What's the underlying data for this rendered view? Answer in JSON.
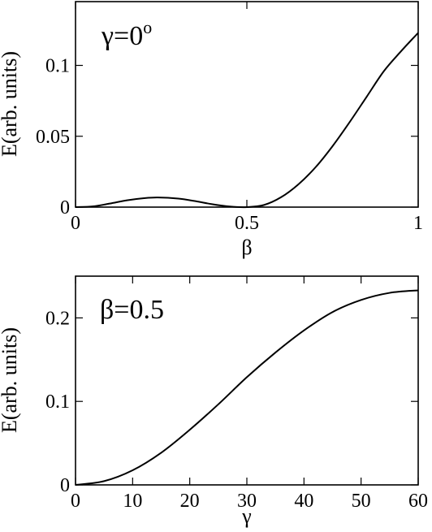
{
  "chart_data": [
    {
      "type": "line",
      "annotation": "γ=0",
      "annotation_sup": "o",
      "xlabel": "β",
      "ylabel": "E(arb. units)",
      "xlim": [
        0,
        1
      ],
      "ylim": [
        0,
        0.145
      ],
      "xticks": [
        0,
        0.5,
        1
      ],
      "xtick_labels": [
        "0",
        "0.5",
        "1"
      ],
      "yticks": [
        0,
        0.05,
        0.1
      ],
      "ytick_labels": [
        "0",
        "0.05",
        "0.1"
      ],
      "grid": false,
      "series": [
        {
          "x": [
            0,
            0.05,
            0.1,
            0.15,
            0.2,
            0.24,
            0.3,
            0.35,
            0.4,
            0.45,
            0.5,
            0.55,
            0.6,
            0.65,
            0.7,
            0.75,
            0.8,
            0.85,
            0.9,
            0.95,
            1.0
          ],
          "y": [
            0,
            0.0005,
            0.0025,
            0.0048,
            0.0063,
            0.0068,
            0.006,
            0.0042,
            0.002,
            0.0004,
            0,
            0.0015,
            0.007,
            0.016,
            0.028,
            0.043,
            0.06,
            0.078,
            0.096,
            0.11,
            0.123
          ]
        }
      ]
    },
    {
      "type": "line",
      "annotation": "β=0.5",
      "xlabel": "γ",
      "ylabel": "E(arb. units)",
      "xlim": [
        0,
        60
      ],
      "ylim": [
        0,
        0.25
      ],
      "xticks": [
        0,
        10,
        20,
        30,
        40,
        50,
        60
      ],
      "xtick_labels": [
        "0",
        "10",
        "20",
        "30",
        "40",
        "50",
        "60"
      ],
      "yticks": [
        0,
        0.1,
        0.2
      ],
      "ytick_labels": [
        "0",
        "0.1",
        "0.2"
      ],
      "grid": false,
      "series": [
        {
          "x": [
            0,
            5,
            10,
            15,
            20,
            25,
            30,
            35,
            40,
            45,
            50,
            55,
            60
          ],
          "y": [
            0,
            0.0045,
            0.0175,
            0.0385,
            0.066,
            0.0965,
            0.129,
            0.1585,
            0.185,
            0.207,
            0.2215,
            0.23,
            0.233
          ]
        }
      ]
    }
  ]
}
